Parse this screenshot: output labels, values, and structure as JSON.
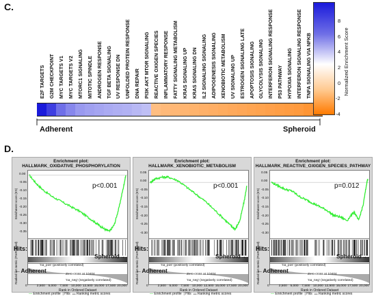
{
  "panel_c": {
    "letter": "C.",
    "left_label": "Adherent",
    "right_label": "Spheroid"
  },
  "panel_d": {
    "letter": "D.",
    "plot_header": "Enrichment plot:",
    "hits_label": "Hits:",
    "spheroid_label": "Spheroid",
    "adherent_label": "Adherent",
    "x_axis_label": "Rank in Ordered Dataset",
    "y_axis_label_ep": "Enrichment score (ES)",
    "y_axis_label_rank": "Ranked list metric (PreRanked)",
    "pos_corr": "'na_pos' (positively correlated)",
    "neg_corr": "'na_neg' (negatively correlated)",
    "zero_cross": "Zero cross at 10404",
    "legend": [
      "Enrichment profile",
      "Hits",
      "Ranking metric scores"
    ]
  },
  "colors": {
    "adherent_max": "#1a1adb",
    "spheroid_max": "#ff7a00",
    "es_line": "#33ee33"
  },
  "chart_data": [
    {
      "type": "heatmap",
      "title": "",
      "colorbar_title": "Normalized Enrichment Score",
      "colorbar_ticks": [
        "8",
        "6",
        "4",
        "2",
        "0",
        "-2",
        "-4"
      ],
      "categories": [
        "E2F TARGETS",
        "G2M CHECKPOINT",
        "MYC TARGETS V1",
        "MYC TARGETS V2",
        "MTORC1 SIGNALING",
        "MITOTIC SPINDLE",
        "ANDROGEN RESPONSE",
        "TGF BETA SIGNALING",
        "UV RESPONSE DN",
        "UNFOLDED PROTEIN RESPONSE",
        "DNA REPAIR",
        "PI3K AKT MTOR SIGNALING",
        "REACTIVE OXIGEN SPECIES",
        "INFLAMMATORY RESPONSE",
        "FATTY SIGNALING METABOLISM",
        "KRAS SIGNALING UP",
        "KRAS SIGNALING DN",
        "IL2 SIGNALING SIGNALING",
        "ADIPOGENESIS SIGNALING",
        "XENOBIOTIC METABOLISM",
        "UV SIGNALING UP",
        "ESTROGEN SIGNALING LATE",
        "APOPTOSIS SIGNALING",
        "GLYCOLYSIS SIGNALING",
        "INTERFERON SIGNALING RESPONSE",
        "P53 PATHWAY",
        "HYPOXIA SIGNALING",
        "INTERFERON SIGNALING RESPONSE",
        "TNFA SIGNALING VIA NFKB",
        "OXIDATIVE PHOSPHORYLATION"
      ],
      "values": [
        8.5,
        6.5,
        4.5,
        3.5,
        2.8,
        2.5,
        2.3,
        2.1,
        1.9,
        1.8,
        1.5,
        1.2,
        -2.0,
        -2.2,
        -2.3,
        -2.4,
        -2.5,
        -2.6,
        -2.7,
        -2.8,
        -2.9,
        -3.0,
        -3.1,
        -3.2,
        -3.3,
        -3.4,
        -3.5,
        -3.6,
        -3.8,
        -4.5
      ],
      "vmin": -5,
      "vmax": 9
    },
    {
      "type": "line",
      "title": "HALLMARK_OXIDATIVE_PHOSPHORYLATION",
      "annotation": "p<0.001",
      "xlabel": "Rank in Ordered Dataset",
      "ylabel": "Enrichment score (ES)",
      "x_ticks": [
        "0",
        "2,500",
        "5,000",
        "7,500",
        "10,000",
        "12,500",
        "15,000",
        "17,500",
        "20,000"
      ],
      "y_ticks": [
        "0.00",
        "-0.05",
        "-0.10",
        "-0.15",
        "-0.20",
        "-0.25",
        "-0.30",
        "-0.35"
      ],
      "xlim": [
        0,
        21000
      ],
      "ylim": [
        -0.38,
        0.02
      ],
      "x": [
        0,
        1500,
        3000,
        5000,
        7000,
        9000,
        11000,
        13000,
        14500,
        15500,
        16500,
        17500,
        18500,
        19500,
        20500,
        21000
      ],
      "y": [
        0,
        -0.05,
        -0.09,
        -0.13,
        -0.16,
        -0.19,
        -0.22,
        -0.26,
        -0.29,
        -0.31,
        -0.33,
        -0.34,
        -0.3,
        -0.2,
        -0.07,
        0.0
      ]
    },
    {
      "type": "line",
      "title": "HALLMARK_XENOBIOTIC_METABOLISM",
      "annotation": "p<0.001",
      "xlabel": "Rank in Ordered Dataset",
      "ylabel": "Enrichment score (ES)",
      "x_ticks": [
        "0",
        "2,500",
        "5,000",
        "7,500",
        "10,000",
        "12,500",
        "15,000",
        "17,500",
        "20,000"
      ],
      "y_ticks": [
        "0.05",
        "0.00",
        "-0.05",
        "-0.10",
        "-0.15",
        "-0.20",
        "-0.25",
        "-0.30"
      ],
      "xlim": [
        0,
        21000
      ],
      "ylim": [
        -0.32,
        0.06
      ],
      "x": [
        0,
        1000,
        2500,
        4000,
        6000,
        8000,
        10000,
        12000,
        14000,
        16000,
        17500,
        18500,
        19500,
        20500,
        21000
      ],
      "y": [
        0,
        0.02,
        0.03,
        0.03,
        0.01,
        -0.03,
        -0.07,
        -0.11,
        -0.16,
        -0.21,
        -0.25,
        -0.27,
        -0.22,
        -0.1,
        -0.02
      ]
    },
    {
      "type": "line",
      "title": "HALLMARK_REACTIVE_OXIGEN_SPECIES_PATHWAY",
      "annotation": "p=0.012",
      "xlabel": "Rank in Ordered Dataset",
      "ylabel": "Enrichment score (ES)",
      "x_ticks": [
        "0",
        "2,500",
        "5,000",
        "7,500",
        "10,000",
        "12,500",
        "15,000",
        "17,500",
        "20,000"
      ],
      "y_ticks": [
        "0.05",
        "0.00",
        "-0.05",
        "-0.10",
        "-0.15",
        "-0.20",
        "-0.25",
        "-0.30"
      ],
      "xlim": [
        0,
        21000
      ],
      "ylim": [
        -0.32,
        0.06
      ],
      "x": [
        0,
        1500,
        3000,
        4500,
        6000,
        7500,
        9000,
        10500,
        12000,
        13500,
        15000,
        16500,
        18000,
        19000,
        20000,
        20800,
        21000
      ],
      "y": [
        0,
        -0.02,
        -0.04,
        -0.05,
        -0.08,
        -0.1,
        -0.12,
        -0.14,
        -0.16,
        -0.19,
        -0.2,
        -0.22,
        -0.17,
        -0.22,
        -0.13,
        0.0,
        0.02
      ]
    }
  ]
}
